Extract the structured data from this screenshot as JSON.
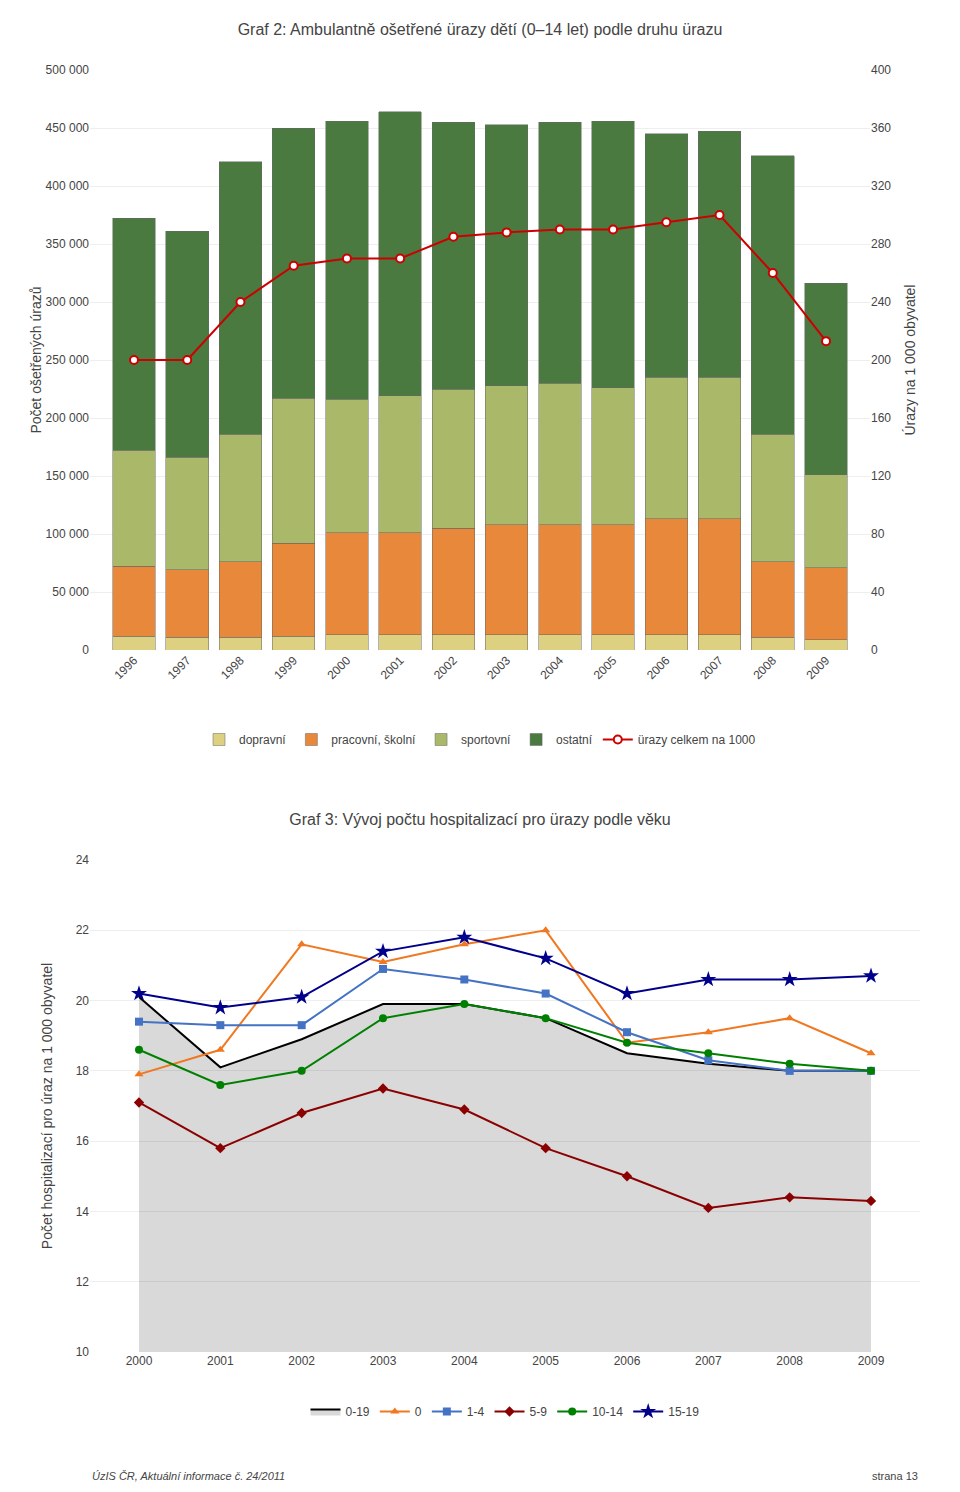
{
  "chart_data": [
    {
      "type": "bar",
      "title": "Graf 2: Ambulantně ošetřené ürazy dětí (0–14 let) podle druhu ürazu",
      "stacked": true,
      "categories": [
        "1996",
        "1997",
        "1998",
        "1999",
        "2000",
        "2001",
        "2002",
        "2003",
        "2004",
        "2005",
        "2006",
        "2007",
        "2008",
        "2009"
      ],
      "series": [
        {
          "name": "dopravní",
          "color": "#ddd080",
          "values": [
            12000,
            11000,
            11000,
            12000,
            13000,
            13000,
            13000,
            13000,
            13000,
            13000,
            13000,
            13000,
            11000,
            9000
          ]
        },
        {
          "name": "pracovní, školní",
          "color": "#e8883a",
          "values": [
            60000,
            58000,
            65000,
            80000,
            88000,
            88000,
            92000,
            95000,
            95000,
            95000,
            100000,
            100000,
            65000,
            62000
          ]
        },
        {
          "name": "sportovní",
          "color": "#aab86a",
          "values": [
            100000,
            97000,
            110000,
            125000,
            115000,
            118000,
            120000,
            120000,
            122000,
            118000,
            122000,
            122000,
            110000,
            80000
          ]
        },
        {
          "name": "ostatní",
          "color": "#4a7a40",
          "values": [
            200000,
            195000,
            235000,
            233000,
            240000,
            245000,
            230000,
            225000,
            225000,
            230000,
            210000,
            212000,
            240000,
            165000
          ]
        },
        {
          "name": "ürazy celkem na 1000",
          "type": "line",
          "axis": "y2",
          "color": "#cc0000",
          "marker": "circle",
          "values": [
            200,
            200,
            240,
            265,
            270,
            270,
            285,
            288,
            290,
            290,
            295,
            300,
            260,
            213
          ]
        }
      ],
      "ylabel": "Počet ošetřených úrazů",
      "y2label": "Úrazy na 1 000 obyvatel",
      "ylim": [
        0,
        500000
      ],
      "yticks": [
        0,
        {
          "value": 50000,
          "label": "50 000"
        },
        {
          "value": 100000,
          "label": "100 000"
        },
        {
          "value": 150000,
          "label": "150 000"
        },
        {
          "value": 200000,
          "label": "200 000"
        },
        {
          "value": 250000,
          "label": "250 000"
        },
        {
          "value": 300000,
          "label": "300 000"
        },
        {
          "value": 350000,
          "label": "350 000"
        },
        {
          "value": 400000,
          "label": "400 000"
        },
        {
          "value": 450000,
          "label": "450 000"
        },
        {
          "value": 500000,
          "label": "500 000"
        }
      ],
      "y2lim": [
        0,
        400
      ],
      "y2ticks": [
        0,
        40,
        80,
        120,
        160,
        200,
        240,
        280,
        320,
        360,
        400
      ],
      "grid": true,
      "legend": "bottom"
    },
    {
      "type": "line",
      "title": "Graf 3: Vývoj počtu hospitalizací pro ürazy podle věku",
      "categories": [
        "2000",
        "2001",
        "2002",
        "2003",
        "2004",
        "2005",
        "2006",
        "2007",
        "2008",
        "2009"
      ],
      "series": [
        {
          "name": "0-19",
          "type": "area",
          "color": "#000000",
          "values": [
            20.1,
            18.1,
            18.9,
            19.9,
            19.9,
            19.5,
            18.5,
            18.2,
            18.0,
            18.0
          ]
        },
        {
          "name": "0",
          "color": "#f07820",
          "marker": "triangle-up",
          "values": [
            17.9,
            18.6,
            21.6,
            21.1,
            21.6,
            22.0,
            18.8,
            19.1,
            19.5,
            18.5
          ]
        },
        {
          "name": "1-4",
          "color": "#4472c4",
          "marker": "square",
          "values": [
            19.4,
            19.3,
            19.3,
            20.9,
            20.6,
            20.2,
            19.1,
            18.3,
            18.0,
            18.0
          ]
        },
        {
          "name": "5-9",
          "color": "#8b0000",
          "marker": "diamond",
          "values": [
            17.1,
            15.8,
            16.8,
            17.5,
            16.9,
            15.8,
            15.0,
            14.1,
            14.4,
            14.3
          ]
        },
        {
          "name": "10-14",
          "color": "#008000",
          "marker": "circle",
          "values": [
            18.6,
            17.6,
            18.0,
            19.5,
            19.9,
            19.5,
            18.8,
            18.5,
            18.2,
            18.0
          ]
        },
        {
          "name": "15-19",
          "color": "#00008b",
          "marker": "star",
          "values": [
            20.2,
            19.8,
            20.1,
            21.4,
            21.8,
            21.2,
            20.2,
            20.6,
            20.6,
            20.7
          ]
        }
      ],
      "ylabel": "Počet hospitalizací pro úraz na 1 000 obyvatel",
      "ylim": [
        10,
        24
      ],
      "yticks": [
        10,
        12,
        14,
        16,
        18,
        20,
        22,
        24
      ],
      "grid": true,
      "legend": "bottom",
      "annotations": [
        "ÚzIS ČR, Aktuální informace č. 24/2011",
        "strana 13"
      ]
    }
  ]
}
